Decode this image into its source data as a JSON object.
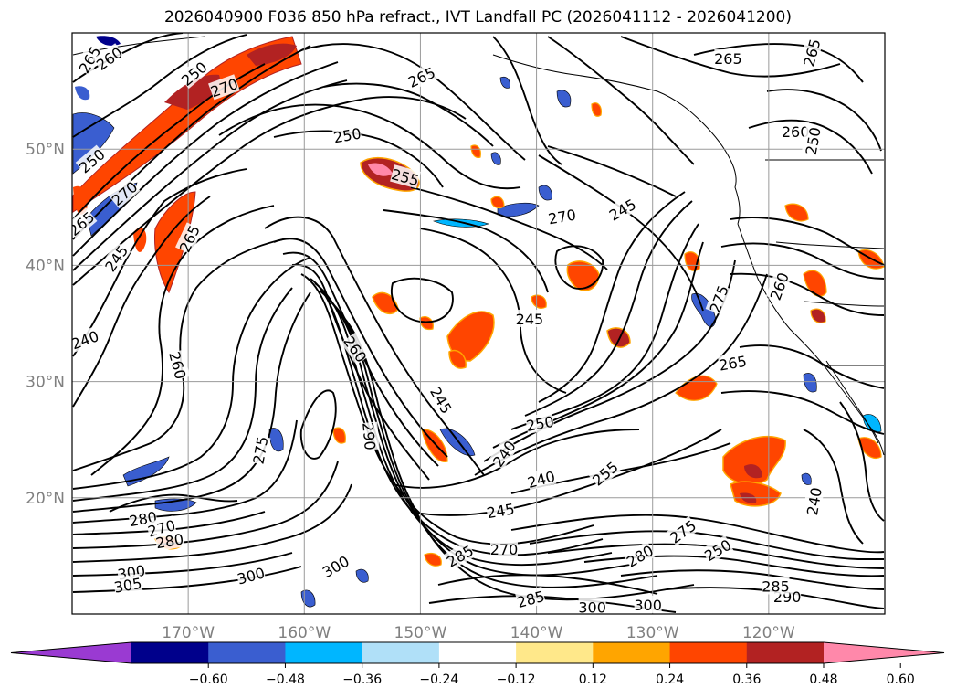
{
  "title": "2026040900 F036 850 hPa refract., IVT Landfall PC (2026041112 - 2026041200)",
  "latitudes": [
    {
      "value": 50,
      "label": "50°N"
    },
    {
      "value": 40,
      "label": "40°N"
    },
    {
      "value": 30,
      "label": "30°N"
    },
    {
      "value": 20,
      "label": "20°N"
    }
  ],
  "longitudes": [
    {
      "value": -170,
      "label": "170°W"
    },
    {
      "value": -160,
      "label": "160°W"
    },
    {
      "value": -150,
      "label": "150°W"
    },
    {
      "value": -140,
      "label": "140°W"
    },
    {
      "value": -130,
      "label": "130°W"
    },
    {
      "value": -120,
      "label": "120°W"
    }
  ],
  "contour_labels": [
    {
      "text": "265",
      "lon": -178.5,
      "lat": 57.7,
      "rot": -60
    },
    {
      "text": "260",
      "lon": -176.8,
      "lat": 57.8,
      "rot": -35
    },
    {
      "text": "250",
      "lon": -169.5,
      "lat": 56.5,
      "rot": -40
    },
    {
      "text": "270",
      "lon": -166.9,
      "lat": 55.3,
      "rot": -20
    },
    {
      "text": "265",
      "lon": -149.9,
      "lat": 56.2,
      "rot": -25
    },
    {
      "text": "250",
      "lon": -156.3,
      "lat": 51.2,
      "rot": -10
    },
    {
      "text": "255",
      "lon": -151.3,
      "lat": 47.6,
      "rot": 15
    },
    {
      "text": "250",
      "lon": -178.3,
      "lat": 49.0,
      "rot": -40
    },
    {
      "text": "270",
      "lon": -175.5,
      "lat": 46.2,
      "rot": -40
    },
    {
      "text": "265",
      "lon": -179.2,
      "lat": 43.6,
      "rot": -40
    },
    {
      "text": "245",
      "lon": -176.2,
      "lat": 40.6,
      "rot": -55
    },
    {
      "text": "265",
      "lon": -169.9,
      "lat": 42.3,
      "rot": -65
    },
    {
      "text": "240",
      "lon": -178.9,
      "lat": 33.6,
      "rot": -20
    },
    {
      "text": "260",
      "lon": -170.9,
      "lat": 31.4,
      "rot": 75
    },
    {
      "text": "270",
      "lon": -137.8,
      "lat": 44.2,
      "rot": -10
    },
    {
      "text": "245",
      "lon": -140.6,
      "lat": 35.4,
      "rot": 0
    },
    {
      "text": "260",
      "lon": -155.6,
      "lat": 32.8,
      "rot": 55
    },
    {
      "text": "245",
      "lon": -148.2,
      "lat": 28.4,
      "rot": 60
    },
    {
      "text": "290",
      "lon": -154.4,
      "lat": 25.3,
      "rot": 85
    },
    {
      "text": "275",
      "lon": -163.8,
      "lat": 24.1,
      "rot": -80
    },
    {
      "text": "250",
      "lon": -139.7,
      "lat": 26.4,
      "rot": -10
    },
    {
      "text": "240",
      "lon": -142.8,
      "lat": 23.8,
      "rot": -55
    },
    {
      "text": "240",
      "lon": -139.6,
      "lat": 21.6,
      "rot": -15
    },
    {
      "text": "255",
      "lon": -134.1,
      "lat": 22.1,
      "rot": -40
    },
    {
      "text": "245",
      "lon": -143.1,
      "lat": 18.9,
      "rot": -10
    },
    {
      "text": "245",
      "lon": -132.6,
      "lat": 44.8,
      "rot": -30
    },
    {
      "text": "265",
      "lon": -123.5,
      "lat": 57.8,
      "rot": 0
    },
    {
      "text": "265",
      "lon": -116.3,
      "lat": 58.3,
      "rot": -75
    },
    {
      "text": "260",
      "lon": -117.7,
      "lat": 51.5,
      "rot": 0
    },
    {
      "text": "250",
      "lon": -116.2,
      "lat": 50.7,
      "rot": -80
    },
    {
      "text": "275",
      "lon": -124.3,
      "lat": 37.1,
      "rot": -70
    },
    {
      "text": "260",
      "lon": -119.1,
      "lat": 38.2,
      "rot": -70
    },
    {
      "text": "265",
      "lon": -123.1,
      "lat": 31.6,
      "rot": -10
    },
    {
      "text": "240",
      "lon": -116.1,
      "lat": 19.7,
      "rot": -80
    },
    {
      "text": "280",
      "lon": -173.9,
      "lat": 18.2,
      "rot": -10
    },
    {
      "text": "270",
      "lon": -172.3,
      "lat": 17.4,
      "rot": -15
    },
    {
      "text": "280",
      "lon": -171.6,
      "lat": 16.3,
      "rot": -10
    },
    {
      "text": "300",
      "lon": -174.9,
      "lat": 13.6,
      "rot": -10
    },
    {
      "text": "305",
      "lon": -175.2,
      "lat": 12.5,
      "rot": -10
    },
    {
      "text": "300",
      "lon": -164.6,
      "lat": 13.3,
      "rot": -15
    },
    {
      "text": "300",
      "lon": -157.3,
      "lat": 14.1,
      "rot": -30
    },
    {
      "text": "285",
      "lon": -146.6,
      "lat": 15.0,
      "rot": -30
    },
    {
      "text": "270",
      "lon": -142.8,
      "lat": 15.6,
      "rot": 0
    },
    {
      "text": "285",
      "lon": -140.5,
      "lat": 11.3,
      "rot": -15
    },
    {
      "text": "300",
      "lon": -135.2,
      "lat": 10.6,
      "rot": 0
    },
    {
      "text": "300",
      "lon": -130.4,
      "lat": 10.8,
      "rot": 0
    },
    {
      "text": "275",
      "lon": -127.4,
      "lat": 17.1,
      "rot": -35
    },
    {
      "text": "280",
      "lon": -131.1,
      "lat": 15.0,
      "rot": -30
    },
    {
      "text": "250",
      "lon": -124.4,
      "lat": 15.5,
      "rot": -30
    },
    {
      "text": "290",
      "lon": -118.4,
      "lat": 11.5,
      "rot": 0
    },
    {
      "text": "285",
      "lon": -119.4,
      "lat": 12.4,
      "rot": 0
    }
  ],
  "colorbar": {
    "colors": [
      "#9a3ad2",
      "#00008b",
      "#3a5ed0",
      "#00b6ff",
      "#b0e0f8",
      "#ffffff",
      "#ffe88a",
      "#ffa500",
      "#ff4500",
      "#b22222",
      "#ff88aa"
    ],
    "tick_labels": [
      "−0.60",
      "−0.48",
      "−0.36",
      "−0.24",
      "−0.12",
      "0.12",
      "0.24",
      "0.36",
      "0.48",
      "0.60"
    ]
  },
  "palette": {
    "contour": "#000000",
    "grid": "#9a9a9a",
    "coast": "#000000"
  }
}
